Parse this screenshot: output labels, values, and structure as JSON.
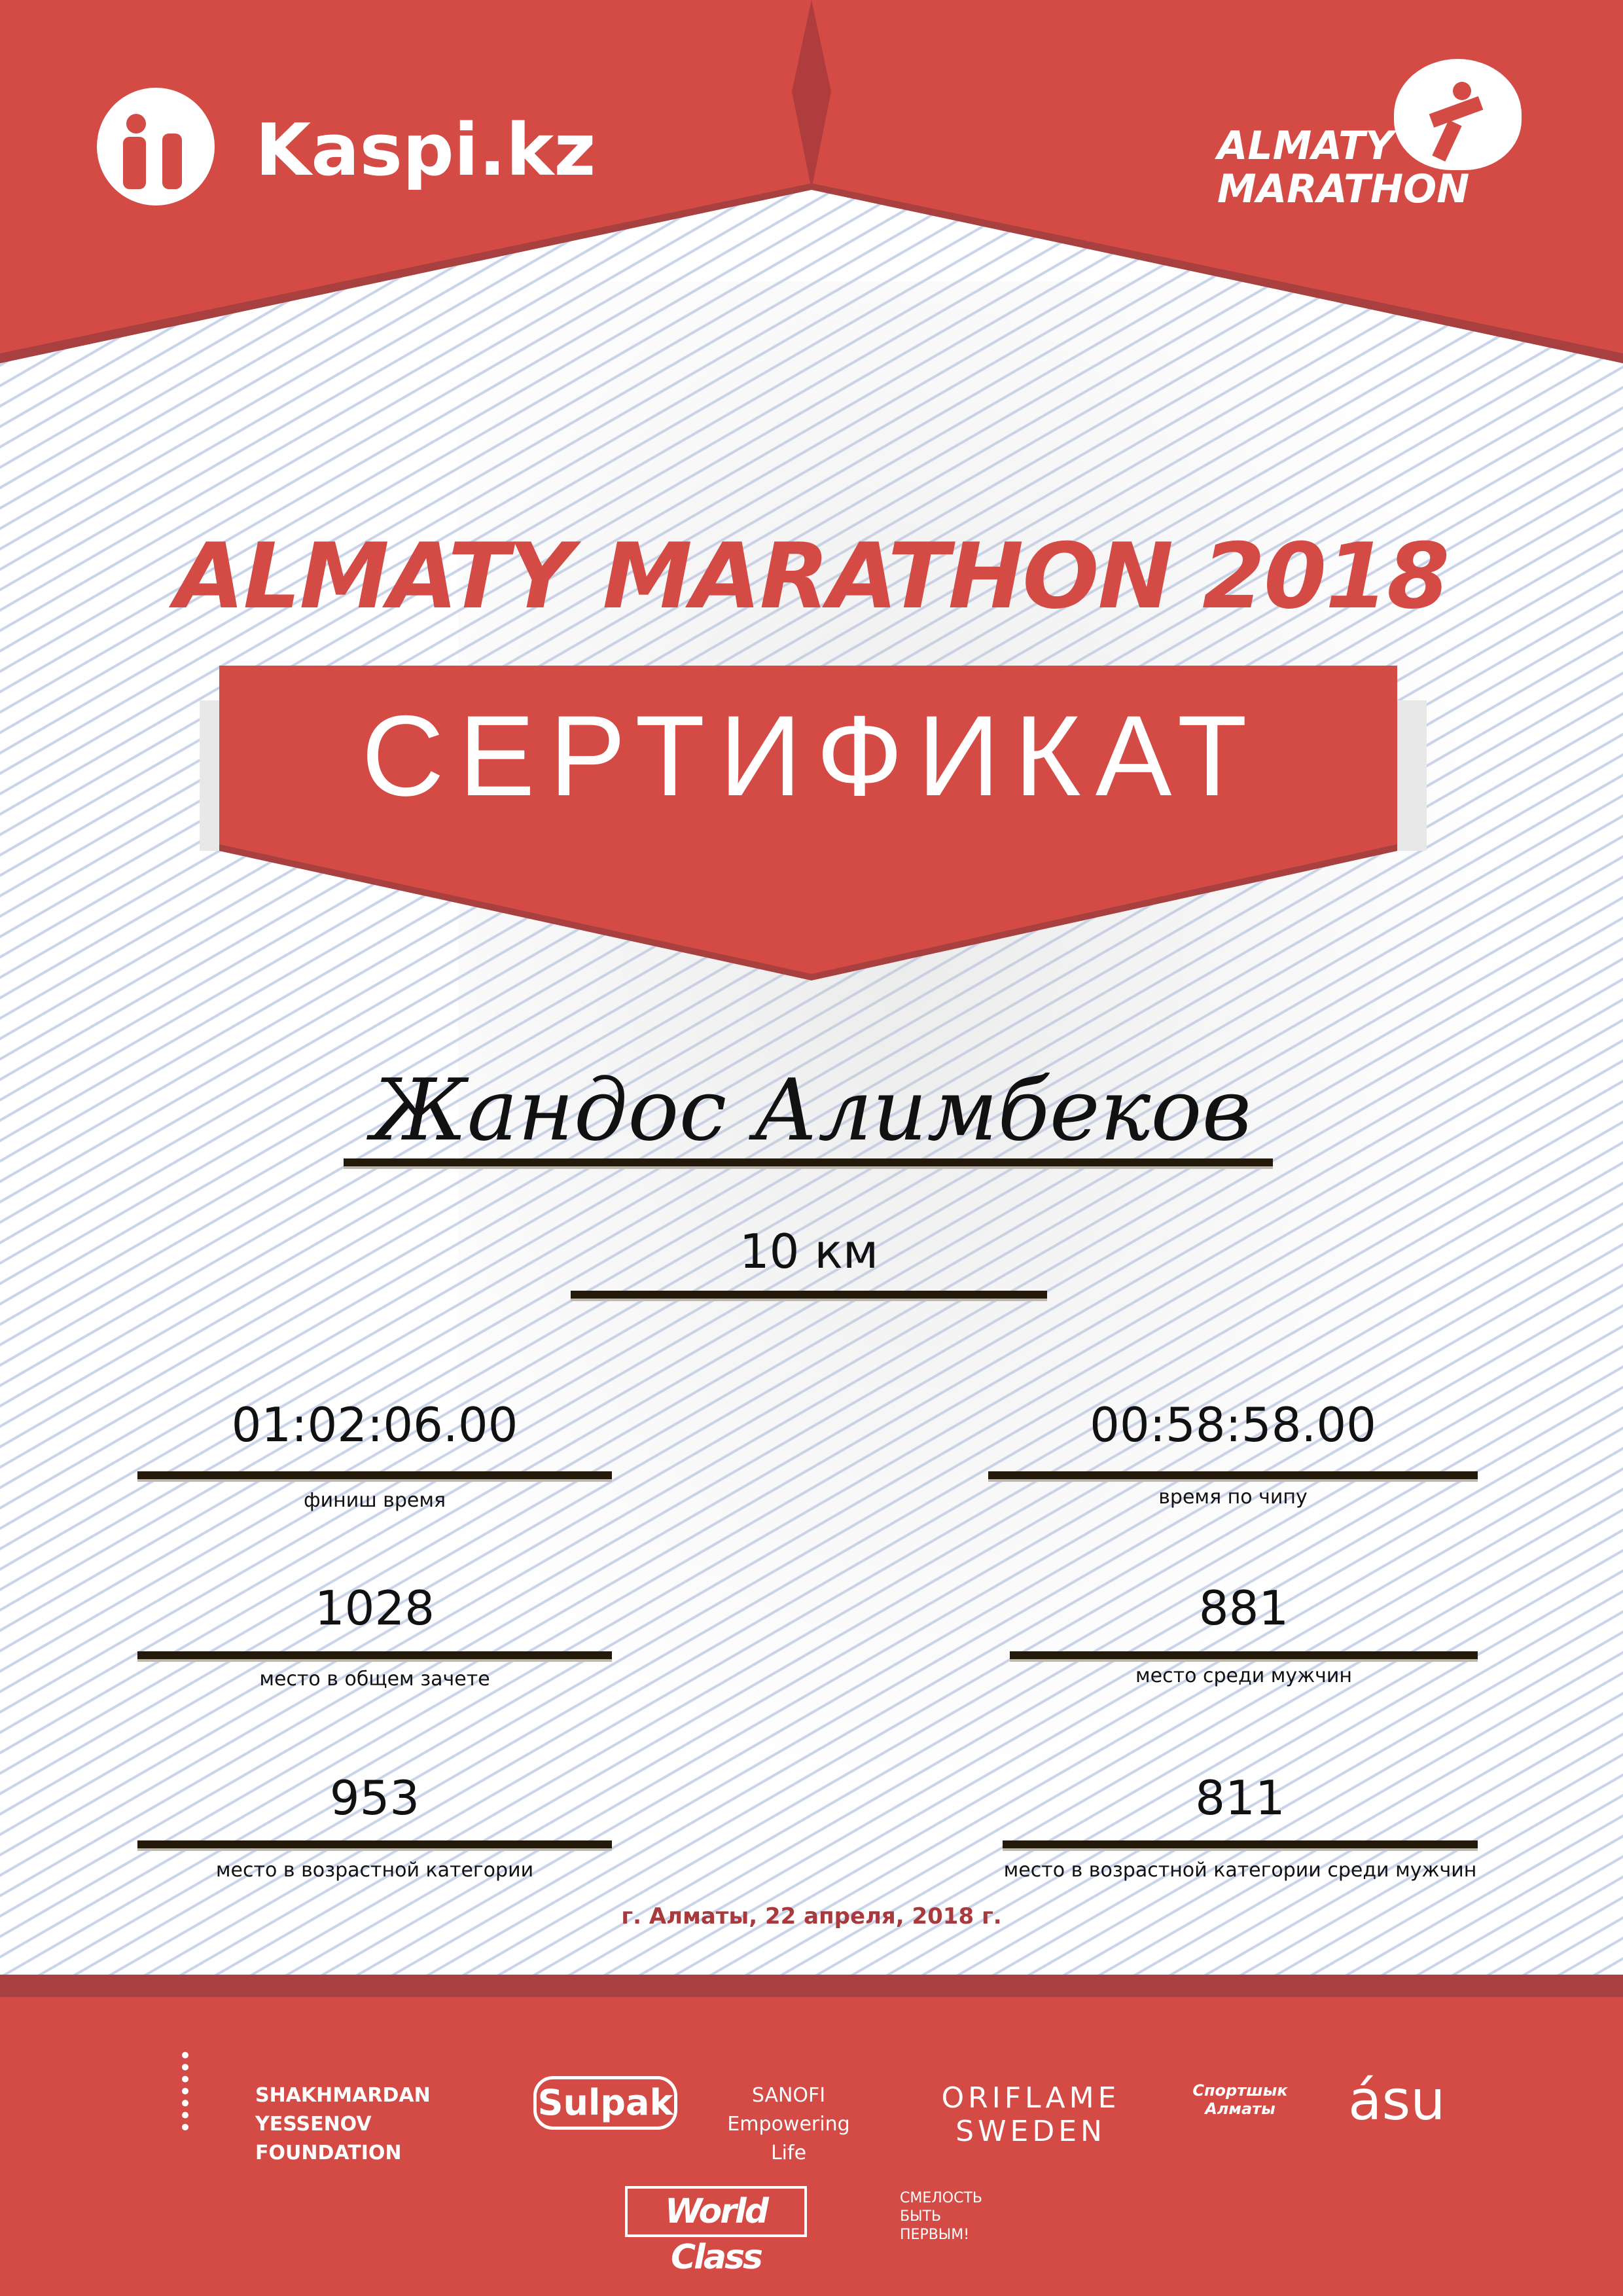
{
  "header": {
    "kaspi_logo": "Kaspi.kz",
    "marathon_logo": "ALMATY MARATHON"
  },
  "title": "ALMATY MARATHON 2018",
  "certificate_label": "СЕРТИФИКАТ",
  "participant_name": "Жандос Алимбеков",
  "distance": "10 км",
  "results": [
    {
      "value": "01:02:06.00",
      "label": "финиш время"
    },
    {
      "value": "00:58:58.00",
      "label": "время по чипу"
    },
    {
      "value": "1028",
      "label": "место в общем зачете"
    },
    {
      "value": "881",
      "label": "место среди мужчин"
    },
    {
      "value": "953",
      "label": "место в возрастной категории"
    },
    {
      "value": "811",
      "label": "место в возрастной категории среди мужчин"
    }
  ],
  "date_place": "г. Алматы, 22 апреля, 2018 г.",
  "sponsors": [
    "SHAKHMARDAN YESSENOV FOUNDATION",
    "Sulpak",
    "SANOFI Empowering Life",
    "ORIFLAME SWEDEN",
    "Спортшык Алматы",
    "ásu",
    "World Class",
    "СМЕЛОСТЬ БЫТЬ ПЕРВЫМ!"
  ],
  "colors": {
    "brand_red": "#d44a45",
    "dark_red": "#a84040",
    "date_red": "#a8393c"
  }
}
